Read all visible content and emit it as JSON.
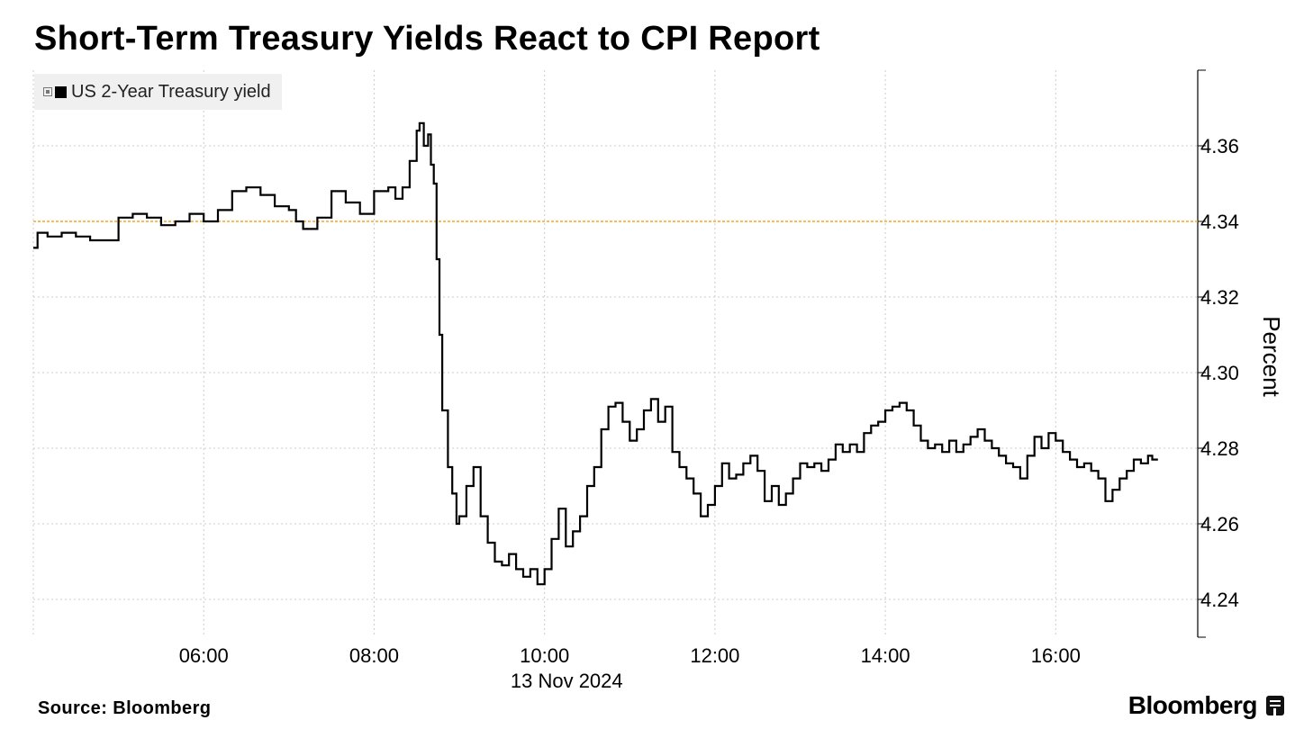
{
  "title": "Short-Term Treasury Yields React to CPI Report",
  "source": "Source: Bloomberg",
  "brand": "Bloomberg",
  "chart_data": {
    "type": "line",
    "x_tick_labels": [
      "06:00",
      "08:00",
      "10:00",
      "12:00",
      "14:00",
      "16:00"
    ],
    "x_date_label": "13 Nov 2024",
    "x_range": [
      "04:00",
      "17:40"
    ],
    "ylabel": "Percent",
    "y_ticks": [
      4.24,
      4.26,
      4.28,
      4.3,
      4.32,
      4.34,
      4.36
    ],
    "ylim": [
      4.23,
      4.38
    ],
    "y_axis_position": "right",
    "grid": true,
    "legend_position": "top-left",
    "reference_line": {
      "value": 4.34,
      "color": "#f5a623"
    },
    "series": [
      {
        "name": "US 2-Year Treasury yield",
        "color": "#000000",
        "points": [
          [
            "04:00",
            4.333
          ],
          [
            "04:03",
            4.337
          ],
          [
            "04:10",
            4.336
          ],
          [
            "04:20",
            4.337
          ],
          [
            "04:30",
            4.336
          ],
          [
            "04:40",
            4.335
          ],
          [
            "04:50",
            4.335
          ],
          [
            "05:00",
            4.341
          ],
          [
            "05:10",
            4.342
          ],
          [
            "05:20",
            4.341
          ],
          [
            "05:30",
            4.339
          ],
          [
            "05:40",
            4.34
          ],
          [
            "05:50",
            4.342
          ],
          [
            "06:00",
            4.34
          ],
          [
            "06:10",
            4.343
          ],
          [
            "06:20",
            4.348
          ],
          [
            "06:30",
            4.349
          ],
          [
            "06:40",
            4.347
          ],
          [
            "06:50",
            4.344
          ],
          [
            "07:00",
            4.343
          ],
          [
            "07:05",
            4.34
          ],
          [
            "07:10",
            4.338
          ],
          [
            "07:20",
            4.341
          ],
          [
            "07:30",
            4.348
          ],
          [
            "07:40",
            4.345
          ],
          [
            "07:50",
            4.342
          ],
          [
            "08:00",
            4.348
          ],
          [
            "08:10",
            4.349
          ],
          [
            "08:15",
            4.346
          ],
          [
            "08:20",
            4.349
          ],
          [
            "08:25",
            4.356
          ],
          [
            "08:30",
            4.364
          ],
          [
            "08:32",
            4.366
          ],
          [
            "08:35",
            4.36
          ],
          [
            "08:38",
            4.363
          ],
          [
            "08:40",
            4.355
          ],
          [
            "08:42",
            4.35
          ],
          [
            "08:44",
            4.33
          ],
          [
            "08:46",
            4.31
          ],
          [
            "08:48",
            4.29
          ],
          [
            "08:50",
            4.29
          ],
          [
            "08:52",
            4.275
          ],
          [
            "08:55",
            4.268
          ],
          [
            "08:58",
            4.26
          ],
          [
            "09:00",
            4.262
          ],
          [
            "09:05",
            4.27
          ],
          [
            "09:10",
            4.275
          ],
          [
            "09:15",
            4.262
          ],
          [
            "09:20",
            4.255
          ],
          [
            "09:25",
            4.25
          ],
          [
            "09:30",
            4.249
          ],
          [
            "09:35",
            4.252
          ],
          [
            "09:40",
            4.248
          ],
          [
            "09:45",
            4.246
          ],
          [
            "09:50",
            4.248
          ],
          [
            "09:55",
            4.244
          ],
          [
            "10:00",
            4.248
          ],
          [
            "10:05",
            4.256
          ],
          [
            "10:10",
            4.264
          ],
          [
            "10:15",
            4.254
          ],
          [
            "10:20",
            4.258
          ],
          [
            "10:25",
            4.262
          ],
          [
            "10:30",
            4.27
          ],
          [
            "10:35",
            4.275
          ],
          [
            "10:40",
            4.285
          ],
          [
            "10:45",
            4.291
          ],
          [
            "10:50",
            4.292
          ],
          [
            "10:55",
            4.287
          ],
          [
            "11:00",
            4.282
          ],
          [
            "11:05",
            4.285
          ],
          [
            "11:10",
            4.29
          ],
          [
            "11:15",
            4.293
          ],
          [
            "11:20",
            4.287
          ],
          [
            "11:25",
            4.291
          ],
          [
            "11:30",
            4.279
          ],
          [
            "11:35",
            4.275
          ],
          [
            "11:40",
            4.272
          ],
          [
            "11:45",
            4.268
          ],
          [
            "11:50",
            4.262
          ],
          [
            "11:55",
            4.265
          ],
          [
            "12:00",
            4.27
          ],
          [
            "12:05",
            4.276
          ],
          [
            "12:10",
            4.272
          ],
          [
            "12:15",
            4.273
          ],
          [
            "12:20",
            4.276
          ],
          [
            "12:25",
            4.278
          ],
          [
            "12:30",
            4.274
          ],
          [
            "12:35",
            4.266
          ],
          [
            "12:40",
            4.27
          ],
          [
            "12:45",
            4.265
          ],
          [
            "12:50",
            4.268
          ],
          [
            "12:55",
            4.272
          ],
          [
            "13:00",
            4.276
          ],
          [
            "13:05",
            4.275
          ],
          [
            "13:10",
            4.276
          ],
          [
            "13:15",
            4.274
          ],
          [
            "13:20",
            4.277
          ],
          [
            "13:25",
            4.281
          ],
          [
            "13:30",
            4.279
          ],
          [
            "13:35",
            4.281
          ],
          [
            "13:40",
            4.279
          ],
          [
            "13:45",
            4.284
          ],
          [
            "13:50",
            4.286
          ],
          [
            "13:55",
            4.287
          ],
          [
            "14:00",
            4.29
          ],
          [
            "14:05",
            4.291
          ],
          [
            "14:10",
            4.292
          ],
          [
            "14:15",
            4.29
          ],
          [
            "14:20",
            4.286
          ],
          [
            "14:25",
            4.282
          ],
          [
            "14:30",
            4.28
          ],
          [
            "14:35",
            4.281
          ],
          [
            "14:40",
            4.279
          ],
          [
            "14:45",
            4.282
          ],
          [
            "14:50",
            4.279
          ],
          [
            "14:55",
            4.281
          ],
          [
            "15:00",
            4.283
          ],
          [
            "15:05",
            4.285
          ],
          [
            "15:10",
            4.282
          ],
          [
            "15:15",
            4.28
          ],
          [
            "15:20",
            4.278
          ],
          [
            "15:25",
            4.276
          ],
          [
            "15:30",
            4.275
          ],
          [
            "15:35",
            4.272
          ],
          [
            "15:40",
            4.278
          ],
          [
            "15:45",
            4.283
          ],
          [
            "15:50",
            4.28
          ],
          [
            "15:55",
            4.284
          ],
          [
            "16:00",
            4.282
          ],
          [
            "16:05",
            4.279
          ],
          [
            "16:10",
            4.277
          ],
          [
            "16:15",
            4.275
          ],
          [
            "16:20",
            4.276
          ],
          [
            "16:25",
            4.274
          ],
          [
            "16:30",
            4.272
          ],
          [
            "16:35",
            4.266
          ],
          [
            "16:40",
            4.269
          ],
          [
            "16:45",
            4.272
          ],
          [
            "16:50",
            4.274
          ],
          [
            "16:55",
            4.277
          ],
          [
            "17:00",
            4.276
          ],
          [
            "17:05",
            4.278
          ],
          [
            "17:08",
            4.277
          ],
          [
            "17:12",
            4.277
          ]
        ]
      }
    ]
  }
}
